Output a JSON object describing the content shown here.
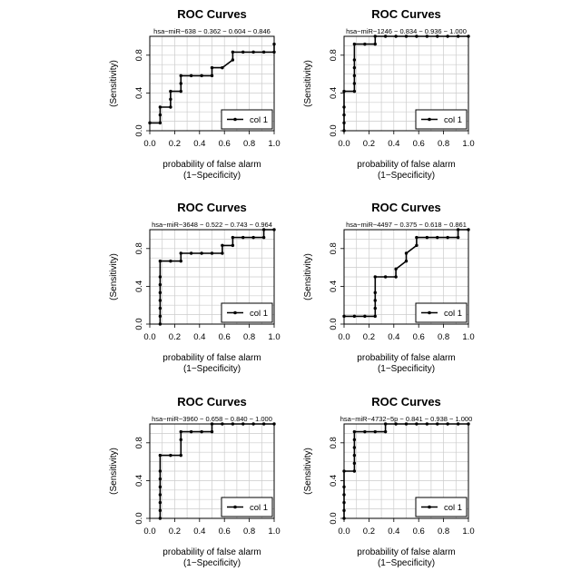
{
  "chart_data": [
    {
      "type": "line",
      "title": "ROC Curves",
      "subtitle": "hsa−miR−638 − 0.362 − 0.604 − 0.846",
      "xlabel": [
        "probability of false alarm",
        "(1−Specificity)"
      ],
      "ylabel": "(Sensitivity)",
      "xlim": [
        0,
        1
      ],
      "ylim": [
        0,
        1
      ],
      "xticks": [
        "0.0",
        "0.2",
        "0.4",
        "0.6",
        "0.8",
        "1.0"
      ],
      "yticks": [
        "0.0",
        "0.4",
        "0.8"
      ],
      "grid": true,
      "legend": {
        "position": "bottom-right",
        "entries": [
          "col 1"
        ]
      },
      "series": [
        {
          "name": "col 1",
          "x": [
            0.0,
            0.083,
            0.083,
            0.083,
            0.167,
            0.167,
            0.167,
            0.25,
            0.25,
            0.25,
            0.333,
            0.417,
            0.5,
            0.5,
            0.583,
            0.667,
            0.667,
            0.75,
            0.833,
            0.917,
            1.0,
            1.0
          ],
          "y": [
            0.083,
            0.083,
            0.167,
            0.25,
            0.25,
            0.333,
            0.417,
            0.417,
            0.5,
            0.583,
            0.583,
            0.583,
            0.583,
            0.667,
            0.667,
            0.75,
            0.833,
            0.833,
            0.833,
            0.833,
            0.833,
            0.917
          ]
        }
      ]
    },
    {
      "type": "line",
      "title": "ROC Curves",
      "subtitle": "hsa−miR−1246 − 0.834 − 0.936 − 1.000",
      "xlabel": [
        "probability of false alarm",
        "(1−Specificity)"
      ],
      "ylabel": "(Sensitivity)",
      "xlim": [
        0,
        1
      ],
      "ylim": [
        0,
        1
      ],
      "xticks": [
        "0.0",
        "0.2",
        "0.4",
        "0.6",
        "0.8",
        "1.0"
      ],
      "yticks": [
        "0.0",
        "0.4",
        "0.8"
      ],
      "grid": true,
      "legend": {
        "position": "bottom-right",
        "entries": [
          "col 1"
        ]
      },
      "series": [
        {
          "name": "col 1",
          "x": [
            0.0,
            0.0,
            0.0,
            0.0,
            0.0,
            0.083,
            0.083,
            0.083,
            0.083,
            0.083,
            0.083,
            0.167,
            0.25,
            0.25,
            0.333,
            0.417,
            0.5,
            0.583,
            0.667,
            0.75,
            0.833,
            0.917,
            1.0
          ],
          "y": [
            0.0,
            0.083,
            0.167,
            0.25,
            0.417,
            0.417,
            0.5,
            0.583,
            0.667,
            0.75,
            0.917,
            0.917,
            0.917,
            1.0,
            1.0,
            1.0,
            1.0,
            1.0,
            1.0,
            1.0,
            1.0,
            1.0,
            1.0
          ]
        }
      ]
    },
    {
      "type": "line",
      "title": "ROC Curves",
      "subtitle": "hsa−miR−3648 − 0.522 − 0.743 − 0.964",
      "xlabel": [
        "probability of false alarm",
        "(1−Specificity)"
      ],
      "ylabel": "(Sensitivity)",
      "xlim": [
        0,
        1
      ],
      "ylim": [
        0,
        1
      ],
      "xticks": [
        "0.0",
        "0.2",
        "0.4",
        "0.6",
        "0.8",
        "1.0"
      ],
      "yticks": [
        "0.0",
        "0.4",
        "0.8"
      ],
      "grid": true,
      "legend": {
        "position": "bottom-right",
        "entries": [
          "col 1"
        ]
      },
      "series": [
        {
          "name": "col 1",
          "x": [
            0.083,
            0.083,
            0.083,
            0.083,
            0.083,
            0.083,
            0.083,
            0.083,
            0.167,
            0.25,
            0.25,
            0.333,
            0.417,
            0.5,
            0.583,
            0.583,
            0.667,
            0.667,
            0.75,
            0.833,
            0.917,
            0.917,
            1.0
          ],
          "y": [
            0.0,
            0.083,
            0.167,
            0.25,
            0.333,
            0.417,
            0.5,
            0.667,
            0.667,
            0.667,
            0.75,
            0.75,
            0.75,
            0.75,
            0.75,
            0.833,
            0.833,
            0.917,
            0.917,
            0.917,
            0.917,
            1.0,
            1.0
          ]
        }
      ]
    },
    {
      "type": "line",
      "title": "ROC Curves",
      "subtitle": "hsa−miR−4497 − 0.375 − 0.618 − 0.861",
      "xlabel": [
        "probability of false alarm",
        "(1−Specificity)"
      ],
      "ylabel": "(Sensitivity)",
      "xlim": [
        0,
        1
      ],
      "ylim": [
        0,
        1
      ],
      "xticks": [
        "0.0",
        "0.2",
        "0.4",
        "0.6",
        "0.8",
        "1.0"
      ],
      "yticks": [
        "0.0",
        "0.4",
        "0.8"
      ],
      "grid": true,
      "legend": {
        "position": "bottom-right",
        "entries": [
          "col 1"
        ]
      },
      "series": [
        {
          "name": "col 1",
          "x": [
            0.0,
            0.083,
            0.167,
            0.25,
            0.25,
            0.25,
            0.25,
            0.25,
            0.333,
            0.417,
            0.417,
            0.5,
            0.5,
            0.583,
            0.583,
            0.667,
            0.75,
            0.833,
            0.917,
            0.917,
            1.0
          ],
          "y": [
            0.083,
            0.083,
            0.083,
            0.083,
            0.167,
            0.25,
            0.333,
            0.5,
            0.5,
            0.5,
            0.583,
            0.667,
            0.75,
            0.833,
            0.917,
            0.917,
            0.917,
            0.917,
            0.917,
            1.0,
            1.0
          ]
        }
      ]
    },
    {
      "type": "line",
      "title": "ROC Curves",
      "subtitle": "hsa−miR−3960 − 0.658 − 0.840 − 1.000",
      "xlabel": [
        "probability of false alarm",
        "(1−Specificity)"
      ],
      "ylabel": "(Sensitivity)",
      "xlim": [
        0,
        1
      ],
      "ylim": [
        0,
        1
      ],
      "xticks": [
        "0.0",
        "0.2",
        "0.4",
        "0.6",
        "0.8",
        "1.0"
      ],
      "yticks": [
        "0.0",
        "0.4",
        "0.8"
      ],
      "grid": true,
      "legend": {
        "position": "bottom-right",
        "entries": [
          "col 1"
        ]
      },
      "series": [
        {
          "name": "col 1",
          "x": [
            0.083,
            0.083,
            0.083,
            0.083,
            0.083,
            0.083,
            0.083,
            0.083,
            0.167,
            0.25,
            0.25,
            0.25,
            0.333,
            0.417,
            0.5,
            0.5,
            0.583,
            0.667,
            0.75,
            0.833,
            0.917,
            1.0
          ],
          "y": [
            0.0,
            0.083,
            0.167,
            0.25,
            0.333,
            0.417,
            0.5,
            0.667,
            0.667,
            0.667,
            0.833,
            0.917,
            0.917,
            0.917,
            0.917,
            1.0,
            1.0,
            1.0,
            1.0,
            1.0,
            1.0,
            1.0
          ]
        }
      ]
    },
    {
      "type": "line",
      "title": "ROC Curves",
      "subtitle": "hsa−miR−4732−5p − 0.841 − 0.938 − 1.000",
      "xlabel": [
        "probability of false alarm",
        "(1−Specificity)"
      ],
      "ylabel": "(Sensitivity)",
      "xlim": [
        0,
        1
      ],
      "ylim": [
        0,
        1
      ],
      "xticks": [
        "0.0",
        "0.2",
        "0.4",
        "0.6",
        "0.8",
        "1.0"
      ],
      "yticks": [
        "0.0",
        "0.4",
        "0.8"
      ],
      "grid": true,
      "legend": {
        "position": "bottom-right",
        "entries": [
          "col 1"
        ]
      },
      "series": [
        {
          "name": "col 1",
          "x": [
            0.0,
            0.0,
            0.0,
            0.0,
            0.0,
            0.0,
            0.083,
            0.083,
            0.083,
            0.083,
            0.083,
            0.083,
            0.167,
            0.25,
            0.333,
            0.333,
            0.417,
            0.5,
            0.583,
            0.667,
            0.75,
            0.833,
            0.917,
            1.0
          ],
          "y": [
            0.0,
            0.083,
            0.167,
            0.25,
            0.333,
            0.5,
            0.5,
            0.583,
            0.667,
            0.75,
            0.833,
            0.917,
            0.917,
            0.917,
            0.917,
            1.0,
            1.0,
            1.0,
            1.0,
            1.0,
            1.0,
            1.0,
            1.0,
            1.0
          ]
        }
      ]
    }
  ]
}
